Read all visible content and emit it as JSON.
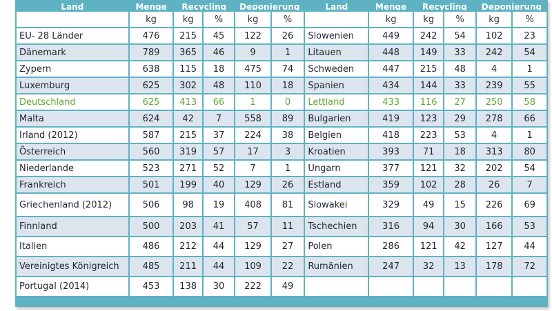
{
  "headers": {
    "land": "Land",
    "menge": "Menge",
    "recycling": "Recycling",
    "deponierung": "Deponierung"
  },
  "units": {
    "kg": "kg",
    "pct": "%"
  },
  "rows": [
    {
      "left": [
        "EU- 28 Länder",
        "476",
        "215",
        "45",
        "122",
        "26"
      ],
      "right": [
        "Slowenien",
        "449",
        "242",
        "54",
        "102",
        "23"
      ]
    },
    {
      "left": [
        "Dänemark",
        "789",
        "365",
        "46",
        "9",
        "1"
      ],
      "right": [
        "Litauen",
        "448",
        "149",
        "33",
        "242",
        "54"
      ]
    },
    {
      "left": [
        "Zypern",
        "638",
        "115",
        "18",
        "475",
        "74"
      ],
      "right": [
        "Schweden",
        "447",
        "215",
        "48",
        "4",
        "1"
      ]
    },
    {
      "left": [
        "Luxemburg",
        "625",
        "302",
        "48",
        "110",
        "18"
      ],
      "right": [
        "Spanien",
        "434",
        "144",
        "33",
        "239",
        "55"
      ]
    },
    {
      "left": [
        "Deutschland",
        "625",
        "413",
        "66",
        "1",
        "0"
      ],
      "right": [
        "Lettland",
        "433",
        "116",
        "27",
        "250",
        "58"
      ]
    },
    {
      "left": [
        "Malta",
        "624",
        "42",
        "7",
        "558",
        "89"
      ],
      "right": [
        "Bulgarien",
        "419",
        "123",
        "29",
        "278",
        "66"
      ]
    },
    {
      "left": [
        "Irland (2012)",
        "587",
        "215",
        "37",
        "224",
        "38"
      ],
      "right": [
        "Belgien",
        "418",
        "223",
        "53",
        "4",
        "1"
      ]
    },
    {
      "left": [
        "Österreich",
        "560",
        "319",
        "57",
        "17",
        "3"
      ],
      "right": [
        "Kroatien",
        "393",
        "71",
        "18",
        "313",
        "80"
      ]
    },
    {
      "left": [
        "Niederlande",
        "523",
        "271",
        "52",
        "7",
        "1"
      ],
      "right": [
        "Ungarn",
        "377",
        "121",
        "32",
        "202",
        "54"
      ]
    },
    {
      "left": [
        "Frankreich",
        "501",
        "199",
        "40",
        "129",
        "26"
      ],
      "right": [
        "Estland",
        "359",
        "102",
        "28",
        "26",
        "7"
      ]
    },
    {
      "left": [
        "Griechenland (2012)",
        "506",
        "98",
        "19",
        "408",
        "81"
      ],
      "right": [
        "Slowakei",
        "329",
        "49",
        "15",
        "226",
        "69"
      ]
    },
    {
      "left": [
        "Finnland",
        "500",
        "203",
        "41",
        "57",
        "11"
      ],
      "right": [
        "Tschechien",
        "316",
        "94",
        "30",
        "166",
        "53"
      ]
    },
    {
      "left": [
        "Italien",
        "486",
        "212",
        "44",
        "129",
        "27"
      ],
      "right": [
        "Polen",
        "286",
        "121",
        "42",
        "127",
        "44"
      ]
    },
    {
      "left": [
        "Vereinigtes Königreich",
        "485",
        "211",
        "44",
        "109",
        "22"
      ],
      "right": [
        "Rumänien",
        "247",
        "32",
        "13",
        "178",
        "72"
      ]
    },
    {
      "left": [
        "Portugal (2014)",
        "453",
        "138",
        "30",
        "222",
        "49"
      ],
      "right": null
    }
  ],
  "colors": {
    "header_bg": "#5fb2c3",
    "row_alt": "#dce5ee",
    "highlight": "#5fa832"
  }
}
